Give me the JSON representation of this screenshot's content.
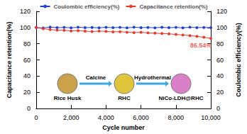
{
  "chart_data": {
    "type": "scatter",
    "x_label": "Cycle number",
    "y_label": "Capacitance retention(%)",
    "y2_label": "Coulombic efficiency(%)",
    "x": [
      0,
      400,
      800,
      1200,
      1600,
      2000,
      2400,
      2800,
      3200,
      3600,
      4000,
      4400,
      4800,
      5200,
      5600,
      6000,
      6400,
      6800,
      7200,
      7600,
      8000,
      8400,
      8800,
      9200,
      9600,
      10000
    ],
    "series": [
      {
        "name": "Coulombic efficiency(%)",
        "color": "#1f3fcf",
        "marker": "circle",
        "line_style": "solid",
        "axis": "y2",
        "values": [
          100,
          99.5,
          100.5,
          99.8,
          100.2,
          99.6,
          100.4,
          99.9,
          100.1,
          99.7,
          100.3,
          99.8,
          100.2,
          99.6,
          100.4,
          99.9,
          100.1,
          99.7,
          100.3,
          99.8,
          100.2,
          99.6,
          100.4,
          99.9,
          100.1,
          99.8
        ]
      },
      {
        "name": "Capacitance retention(%)",
        "color": "#e8392b",
        "marker": "circle",
        "line_style": "solid",
        "values": [
          100,
          98.5,
          97.5,
          96.8,
          96.5,
          95.8,
          96.2,
          95.5,
          95.0,
          95.6,
          95.2,
          94.6,
          94.9,
          94.2,
          93.8,
          94.1,
          93.4,
          93.0,
          92.6,
          92.2,
          91.5,
          90.8,
          90.0,
          89.2,
          88.0,
          86.54
        ]
      }
    ],
    "xlim": [
      0,
      10000
    ],
    "xticks": [
      0,
      2000,
      4000,
      6000,
      8000,
      10000
    ],
    "ylim": [
      0,
      120
    ],
    "yticks": [
      0,
      20,
      40,
      60,
      80,
      100,
      120
    ],
    "y2lim": [
      0,
      120
    ],
    "y2ticks": [
      0,
      20,
      40,
      60,
      80,
      100,
      120
    ],
    "legend": "top",
    "annotations": [
      {
        "text": "86.54%",
        "x": 10000,
        "y": 86.54,
        "color": "#e8392b"
      }
    ],
    "inset": {
      "stages": [
        "Rice Husk",
        "RHC",
        "NiCo-LDH@RHC"
      ],
      "steps": [
        "Calcine",
        "Hydrothermal"
      ]
    }
  }
}
